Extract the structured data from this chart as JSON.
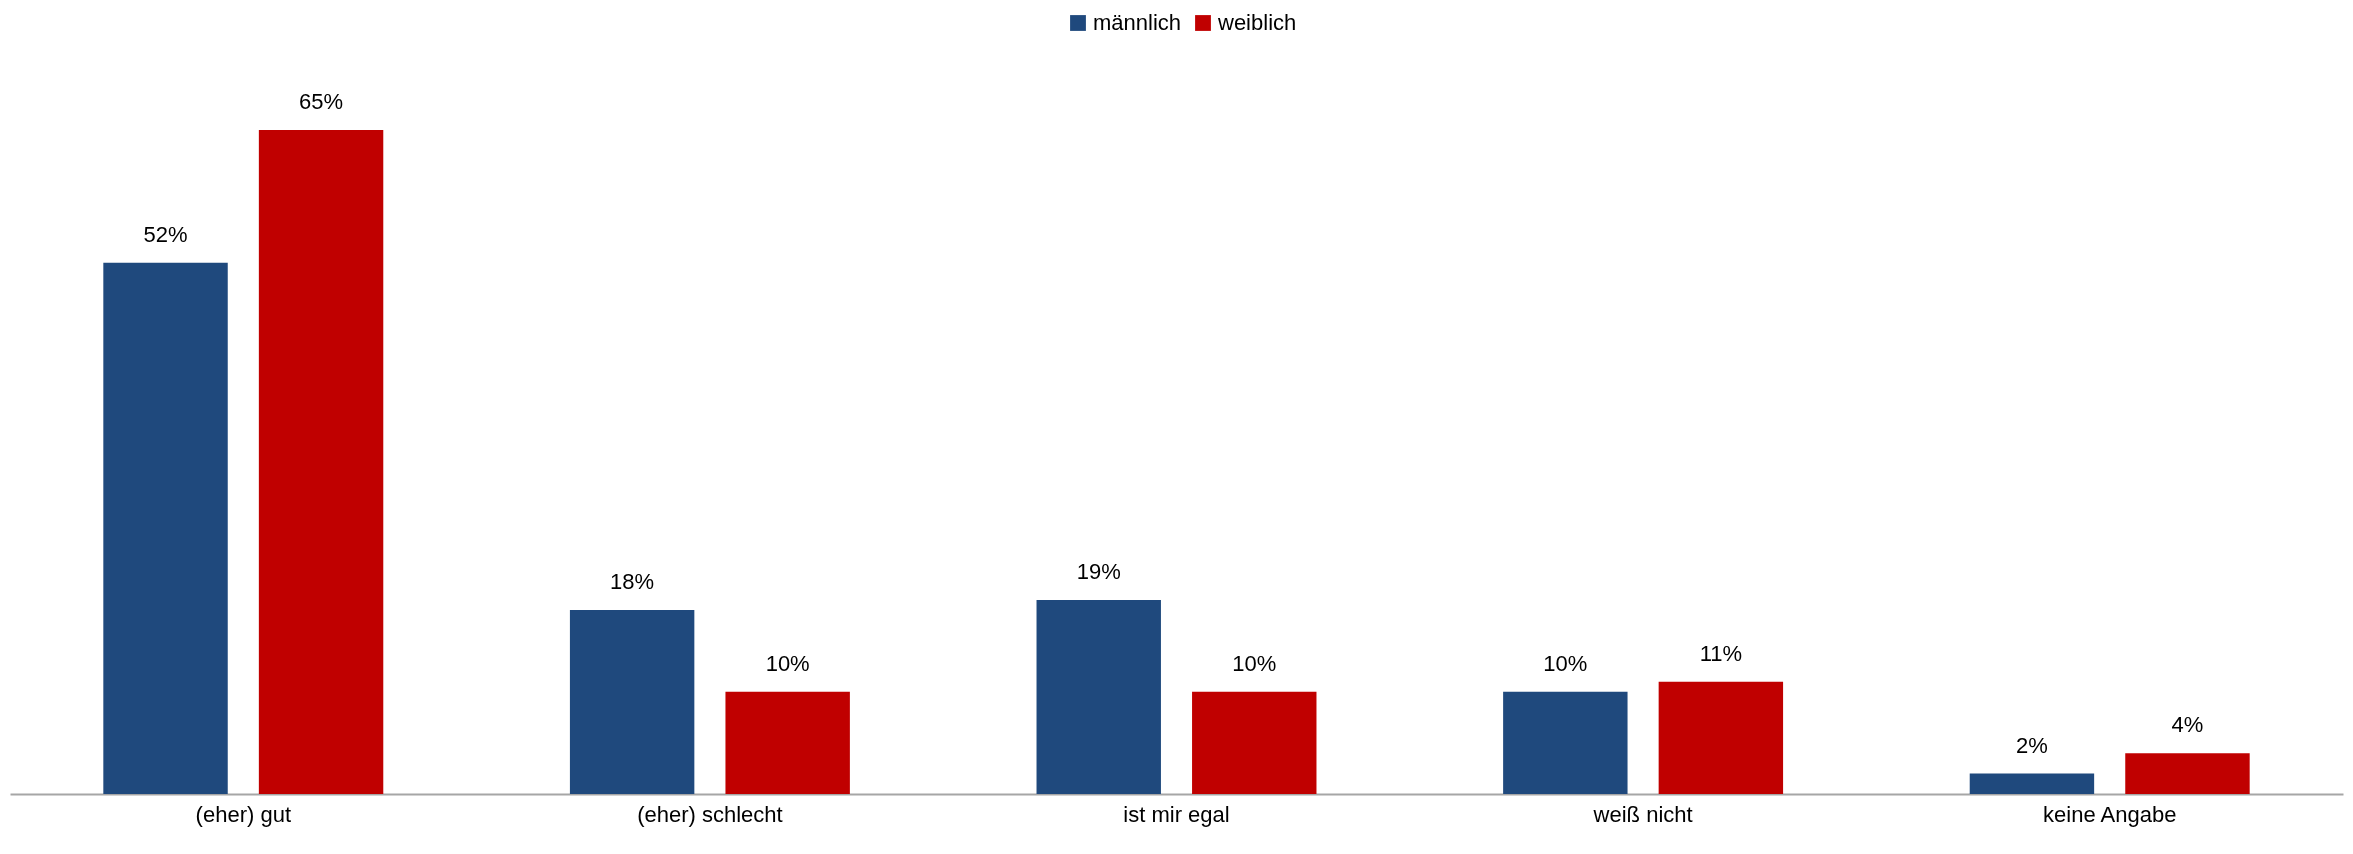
{
  "chart_data": {
    "type": "bar",
    "categories": [
      "(eher) gut",
      "(eher) schlecht",
      "ist mir egal",
      "weiß nicht",
      "keine Angabe"
    ],
    "series": [
      {
        "name": "männlich",
        "color": "#1f497d",
        "values": [
          52,
          18,
          19,
          10,
          2
        ],
        "value_labels": [
          "52%",
          "18%",
          "19%",
          "10%",
          "2%"
        ]
      },
      {
        "name": "weiblich",
        "color": "#c00000",
        "values": [
          65,
          10,
          10,
          11,
          4
        ],
        "value_labels": [
          "65%",
          "10%",
          "10%",
          "11%",
          "4%"
        ]
      }
    ],
    "legend": "top",
    "grid": false
  }
}
